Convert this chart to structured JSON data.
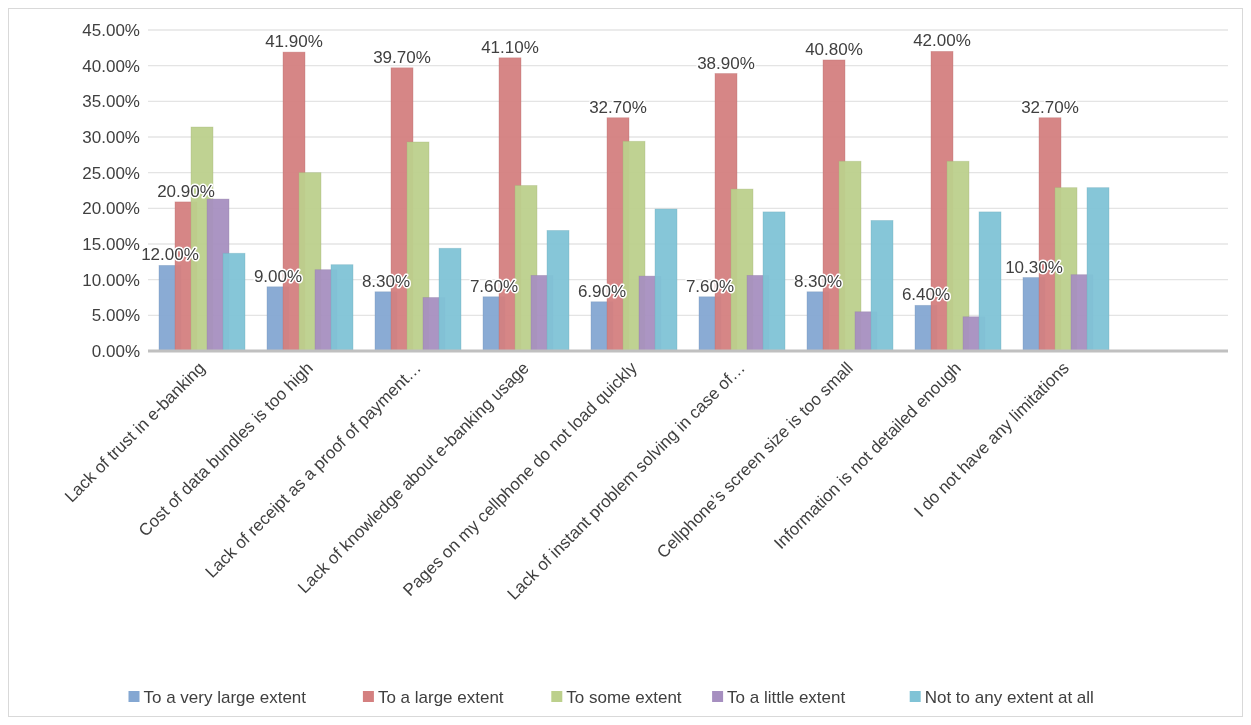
{
  "chart_data": {
    "type": "bar",
    "categories": [
      "Lack of trust in e-banking",
      "Cost of data bundles is too high",
      "Lack of receipt as a proof of payment…",
      "Lack of knowledge about e-banking usage",
      "Pages on my cellphone do not load quickly",
      "Lack of instant problem solving in case of…",
      "Cellphone’s screen size is too small",
      "Information is not detailed enough",
      "I do not have any limitations",
      null
    ],
    "series": [
      {
        "name": "To a very large extent",
        "color": "#84a7d2",
        "values": [
          12.0,
          9.0,
          8.3,
          7.6,
          6.9,
          7.6,
          8.3,
          6.4,
          10.3,
          null
        ],
        "value_labels": [
          "12.00%",
          "9.00%",
          "8.30%",
          "7.60%",
          "6.90%",
          "7.60%",
          "8.30%",
          "6.40%",
          "10.30%",
          null
        ]
      },
      {
        "name": "To a large extent",
        "color": "#d48080",
        "values": [
          20.9,
          41.9,
          39.7,
          41.1,
          32.7,
          38.9,
          40.8,
          42.0,
          32.7,
          null
        ],
        "value_labels": [
          "20.90%",
          "41.90%",
          "39.70%",
          "41.10%",
          "32.70%",
          "38.90%",
          "40.80%",
          "42.00%",
          "32.70%",
          null
        ]
      },
      {
        "name": "To some extent",
        "color": "#bcd08c",
        "values": [
          31.4,
          25.0,
          29.3,
          23.2,
          29.4,
          22.7,
          26.6,
          26.6,
          22.9,
          null
        ]
      },
      {
        "name": "To a little extent",
        "color": "#a68fc0",
        "values": [
          21.3,
          11.4,
          7.5,
          10.6,
          10.5,
          10.6,
          5.5,
          4.8,
          10.7,
          null
        ]
      },
      {
        "name": "Not to any extent at all",
        "color": "#80c3d6",
        "values": [
          13.7,
          12.1,
          14.4,
          16.9,
          19.9,
          19.5,
          18.3,
          19.5,
          22.9,
          null
        ]
      }
    ],
    "ylim": [
      0,
      45
    ],
    "yticks": [
      {
        "value": 0,
        "label": "0.00%"
      },
      {
        "value": 5,
        "label": "5.00%"
      },
      {
        "value": 10,
        "label": "10.00%"
      },
      {
        "value": 15,
        "label": "15.00%"
      },
      {
        "value": 20,
        "label": "20.00%"
      },
      {
        "value": 25,
        "label": "25.00%"
      },
      {
        "value": 30,
        "label": "30.00%"
      },
      {
        "value": 35,
        "label": "35.00%"
      },
      {
        "value": 40,
        "label": "40.00%"
      },
      {
        "value": 45,
        "label": "45.00%"
      }
    ],
    "grid": "y",
    "legend": "bottom"
  }
}
